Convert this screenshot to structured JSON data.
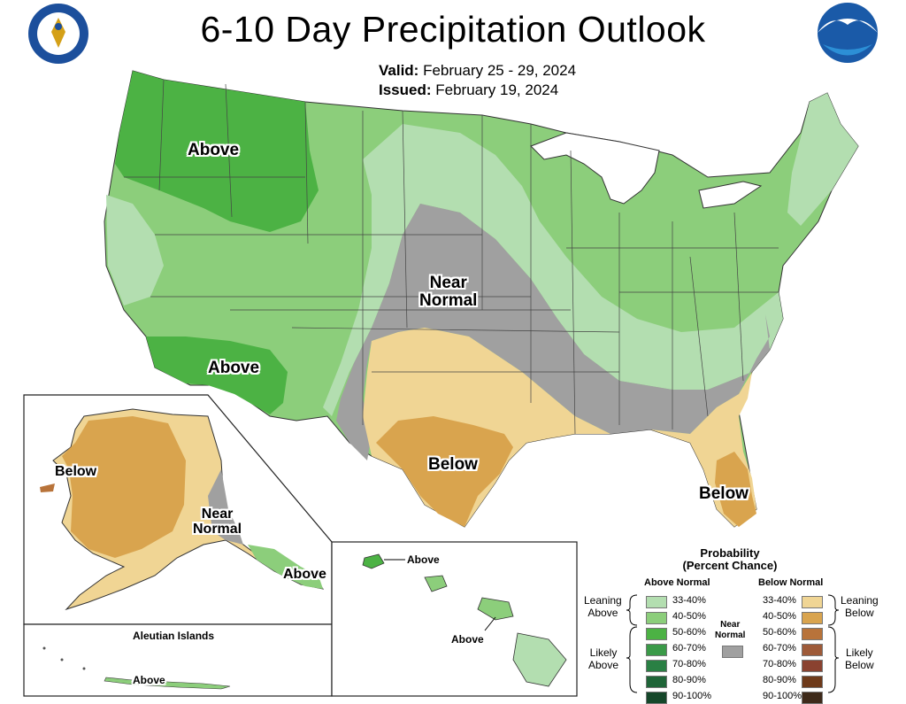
{
  "title": "6-10 Day Precipitation Outlook",
  "valid_label": "Valid:",
  "valid_value": "February 25 - 29, 2024",
  "issued_label": "Issued:",
  "issued_value": "February 19, 2024",
  "logos": {
    "left": "Department of Commerce seal",
    "right": "NOAA"
  },
  "regions": {
    "nw_above": "Above",
    "sw_above": "Above",
    "near_normal_1": "Near",
    "near_normal_2": "Normal",
    "tx_below": "Below",
    "fl_below": "Below",
    "ak_below": "Below",
    "ak_near_1": "Near",
    "ak_near_2": "Normal",
    "ak_above": "Above",
    "aleutian_title": "Aleutian Islands",
    "aleutian_above": "Above",
    "hi_above_1": "Above",
    "hi_above_2": "Above"
  },
  "legend": {
    "title_1": "Probability",
    "title_2": "(Percent Chance)",
    "above_header": "Above Normal",
    "below_header": "Below Normal",
    "near_1": "Near",
    "near_2": "Normal",
    "leaning_above_1": "Leaning",
    "leaning_above_2": "Above",
    "likely_above_1": "Likely",
    "likely_above_2": "Above",
    "leaning_below_1": "Leaning",
    "leaning_below_2": "Below",
    "likely_below_1": "Likely",
    "likely_below_2": "Below",
    "above": [
      {
        "range": "33-40%",
        "color": "#b3deb0"
      },
      {
        "range": "40-50%",
        "color": "#8cce7b"
      },
      {
        "range": "50-60%",
        "color": "#4cb244"
      },
      {
        "range": "60-70%",
        "color": "#3a9a48"
      },
      {
        "range": "70-80%",
        "color": "#2a8044"
      },
      {
        "range": "80-90%",
        "color": "#1f6538"
      },
      {
        "range": "90-100%",
        "color": "#15472a"
      }
    ],
    "below": [
      {
        "range": "33-40%",
        "color": "#f0d594"
      },
      {
        "range": "40-50%",
        "color": "#d9a44e"
      },
      {
        "range": "50-60%",
        "color": "#b8733a"
      },
      {
        "range": "60-70%",
        "color": "#9e5a38"
      },
      {
        "range": "70-80%",
        "color": "#8a4230"
      },
      {
        "range": "80-90%",
        "color": "#6e3a1a"
      },
      {
        "range": "90-100%",
        "color": "#3e2a1a"
      }
    ],
    "near_color": "#a0a0a0"
  }
}
